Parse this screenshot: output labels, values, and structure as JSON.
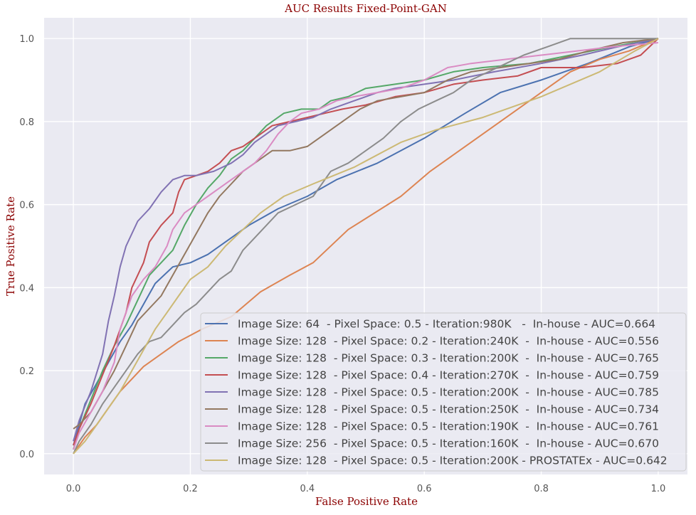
{
  "chart_data": {
    "type": "line",
    "title": "AUC Results Fixed-Point-GAN",
    "xlabel": "False Positive Rate",
    "ylabel": "True Positive Rate",
    "xlim": [
      -0.05,
      1.05
    ],
    "ylim": [
      -0.05,
      1.05
    ],
    "xticks": [
      0.0,
      0.2,
      0.4,
      0.6,
      0.8,
      1.0
    ],
    "yticks": [
      0.0,
      0.2,
      0.4,
      0.6,
      0.8,
      1.0
    ],
    "xtick_labels": [
      "0.0",
      "0.2",
      "0.4",
      "0.6",
      "0.8",
      "1.0"
    ],
    "ytick_labels": [
      "0.0",
      "0.2",
      "0.4",
      "0.6",
      "0.8",
      "1.0"
    ],
    "grid": true,
    "legend_position": "lower-right",
    "colors": {
      "title": "#8b0000",
      "axis_label": "#8b0000",
      "background": "#eaeaf2",
      "grid": "#ffffff",
      "tick_text": "#555555",
      "legend_text": "#444444",
      "legend_bg": "#eaeaf2",
      "legend_border": "#cccccc"
    },
    "series": [
      {
        "name": "Image Size: 64  - Pixel Space: 0.5 - Iteration:980K   -  In-house - AUC=0.664",
        "color": "#4c72b0",
        "points": [
          [
            0,
            0.02
          ],
          [
            0.01,
            0.07
          ],
          [
            0.02,
            0.12
          ],
          [
            0.04,
            0.17
          ],
          [
            0.06,
            0.22
          ],
          [
            0.08,
            0.27
          ],
          [
            0.1,
            0.31
          ],
          [
            0.12,
            0.36
          ],
          [
            0.14,
            0.41
          ],
          [
            0.17,
            0.45
          ],
          [
            0.2,
            0.46
          ],
          [
            0.23,
            0.48
          ],
          [
            0.27,
            0.52
          ],
          [
            0.3,
            0.55
          ],
          [
            0.35,
            0.59
          ],
          [
            0.4,
            0.62
          ],
          [
            0.45,
            0.66
          ],
          [
            0.52,
            0.7
          ],
          [
            0.6,
            0.76
          ],
          [
            0.67,
            0.82
          ],
          [
            0.73,
            0.87
          ],
          [
            0.8,
            0.9
          ],
          [
            0.88,
            0.94
          ],
          [
            0.95,
            0.98
          ],
          [
            1.0,
            1.0
          ]
        ]
      },
      {
        "name": "Image Size: 128  - Pixel Space: 0.2 - Iteration:240K  -  In-house - AUC=0.556",
        "color": "#dd8452",
        "points": [
          [
            0,
            0.0
          ],
          [
            0.01,
            0.02
          ],
          [
            0.02,
            0.04
          ],
          [
            0.04,
            0.07
          ],
          [
            0.06,
            0.11
          ],
          [
            0.08,
            0.15
          ],
          [
            0.1,
            0.18
          ],
          [
            0.12,
            0.21
          ],
          [
            0.15,
            0.24
          ],
          [
            0.18,
            0.27
          ],
          [
            0.22,
            0.3
          ],
          [
            0.27,
            0.33
          ],
          [
            0.32,
            0.39
          ],
          [
            0.37,
            0.43
          ],
          [
            0.41,
            0.46
          ],
          [
            0.47,
            0.54
          ],
          [
            0.56,
            0.62
          ],
          [
            0.61,
            0.68
          ],
          [
            0.67,
            0.74
          ],
          [
            0.73,
            0.8
          ],
          [
            0.8,
            0.87
          ],
          [
            0.85,
            0.92
          ],
          [
            0.9,
            0.95
          ],
          [
            0.95,
            0.97
          ],
          [
            1.0,
            1.0
          ]
        ]
      },
      {
        "name": "Image Size: 128  - Pixel Space: 0.3 - Iteration:200K  -  In-house - AUC=0.765",
        "color": "#55a868",
        "points": [
          [
            0,
            0.01
          ],
          [
            0.01,
            0.06
          ],
          [
            0.03,
            0.13
          ],
          [
            0.05,
            0.2
          ],
          [
            0.07,
            0.26
          ],
          [
            0.09,
            0.31
          ],
          [
            0.11,
            0.37
          ],
          [
            0.13,
            0.43
          ],
          [
            0.15,
            0.46
          ],
          [
            0.17,
            0.49
          ],
          [
            0.19,
            0.55
          ],
          [
            0.21,
            0.6
          ],
          [
            0.23,
            0.64
          ],
          [
            0.25,
            0.67
          ],
          [
            0.27,
            0.71
          ],
          [
            0.29,
            0.73
          ],
          [
            0.31,
            0.76
          ],
          [
            0.33,
            0.79
          ],
          [
            0.36,
            0.82
          ],
          [
            0.39,
            0.83
          ],
          [
            0.42,
            0.83
          ],
          [
            0.44,
            0.85
          ],
          [
            0.47,
            0.86
          ],
          [
            0.5,
            0.88
          ],
          [
            0.55,
            0.89
          ],
          [
            0.6,
            0.9
          ],
          [
            0.65,
            0.92
          ],
          [
            0.7,
            0.93
          ],
          [
            0.78,
            0.94
          ],
          [
            0.85,
            0.96
          ],
          [
            0.92,
            0.98
          ],
          [
            1.0,
            1.0
          ]
        ]
      },
      {
        "name": "Image Size: 128  - Pixel Space: 0.4 - Iteration:270K  -  In-house - AUC=0.759",
        "color": "#c44e52",
        "points": [
          [
            0,
            0.02
          ],
          [
            0.01,
            0.06
          ],
          [
            0.03,
            0.12
          ],
          [
            0.05,
            0.19
          ],
          [
            0.07,
            0.26
          ],
          [
            0.09,
            0.34
          ],
          [
            0.1,
            0.4
          ],
          [
            0.12,
            0.46
          ],
          [
            0.13,
            0.51
          ],
          [
            0.15,
            0.55
          ],
          [
            0.17,
            0.58
          ],
          [
            0.18,
            0.63
          ],
          [
            0.19,
            0.66
          ],
          [
            0.21,
            0.67
          ],
          [
            0.23,
            0.68
          ],
          [
            0.25,
            0.7
          ],
          [
            0.27,
            0.73
          ],
          [
            0.29,
            0.74
          ],
          [
            0.31,
            0.76
          ],
          [
            0.34,
            0.79
          ],
          [
            0.37,
            0.8
          ],
          [
            0.4,
            0.81
          ],
          [
            0.43,
            0.82
          ],
          [
            0.46,
            0.83
          ],
          [
            0.5,
            0.84
          ],
          [
            0.55,
            0.86
          ],
          [
            0.6,
            0.87
          ],
          [
            0.65,
            0.89
          ],
          [
            0.7,
            0.9
          ],
          [
            0.76,
            0.91
          ],
          [
            0.8,
            0.93
          ],
          [
            0.87,
            0.93
          ],
          [
            0.93,
            0.94
          ],
          [
            0.97,
            0.96
          ],
          [
            1.0,
            1.0
          ]
        ]
      },
      {
        "name": "Image Size: 128  - Pixel Space: 0.5 - Iteration:200K  -  In-house - AUC=0.785",
        "color": "#8172b3",
        "points": [
          [
            0,
            0.03
          ],
          [
            0.01,
            0.08
          ],
          [
            0.03,
            0.15
          ],
          [
            0.05,
            0.24
          ],
          [
            0.06,
            0.32
          ],
          [
            0.07,
            0.38
          ],
          [
            0.08,
            0.45
          ],
          [
            0.09,
            0.5
          ],
          [
            0.1,
            0.53
          ],
          [
            0.11,
            0.56
          ],
          [
            0.13,
            0.59
          ],
          [
            0.15,
            0.63
          ],
          [
            0.17,
            0.66
          ],
          [
            0.19,
            0.67
          ],
          [
            0.21,
            0.67
          ],
          [
            0.24,
            0.68
          ],
          [
            0.27,
            0.7
          ],
          [
            0.29,
            0.72
          ],
          [
            0.31,
            0.75
          ],
          [
            0.33,
            0.77
          ],
          [
            0.35,
            0.79
          ],
          [
            0.38,
            0.8
          ],
          [
            0.41,
            0.81
          ],
          [
            0.44,
            0.83
          ],
          [
            0.48,
            0.85
          ],
          [
            0.52,
            0.87
          ],
          [
            0.55,
            0.88
          ],
          [
            0.6,
            0.89
          ],
          [
            0.65,
            0.9
          ],
          [
            0.72,
            0.92
          ],
          [
            0.8,
            0.94
          ],
          [
            0.87,
            0.96
          ],
          [
            0.93,
            0.98
          ],
          [
            1.0,
            1.0
          ]
        ]
      },
      {
        "name": "Image Size: 128  - Pixel Space: 0.5 - Iteration:250K  -  In-house - AUC=0.734",
        "color": "#937860",
        "points": [
          [
            0,
            0.06
          ],
          [
            0.01,
            0.07
          ],
          [
            0.03,
            0.1
          ],
          [
            0.05,
            0.15
          ],
          [
            0.07,
            0.2
          ],
          [
            0.09,
            0.26
          ],
          [
            0.11,
            0.32
          ],
          [
            0.13,
            0.35
          ],
          [
            0.15,
            0.38
          ],
          [
            0.17,
            0.43
          ],
          [
            0.19,
            0.48
          ],
          [
            0.21,
            0.53
          ],
          [
            0.23,
            0.58
          ],
          [
            0.25,
            0.62
          ],
          [
            0.27,
            0.65
          ],
          [
            0.29,
            0.68
          ],
          [
            0.31,
            0.7
          ],
          [
            0.34,
            0.73
          ],
          [
            0.37,
            0.73
          ],
          [
            0.4,
            0.74
          ],
          [
            0.43,
            0.77
          ],
          [
            0.46,
            0.8
          ],
          [
            0.49,
            0.83
          ],
          [
            0.52,
            0.85
          ],
          [
            0.56,
            0.86
          ],
          [
            0.6,
            0.87
          ],
          [
            0.64,
            0.9
          ],
          [
            0.68,
            0.92
          ],
          [
            0.73,
            0.93
          ],
          [
            0.78,
            0.94
          ],
          [
            0.83,
            0.95
          ],
          [
            0.88,
            0.97
          ],
          [
            0.94,
            0.99
          ],
          [
            1.0,
            1.0
          ]
        ]
      },
      {
        "name": "Image Size: 128  - Pixel Space: 0.5 - Iteration:190K  -  In-house - AUC=0.761",
        "color": "#da8bc3",
        "points": [
          [
            0,
            0.01
          ],
          [
            0.01,
            0.05
          ],
          [
            0.03,
            0.1
          ],
          [
            0.05,
            0.15
          ],
          [
            0.07,
            0.22
          ],
          [
            0.08,
            0.3
          ],
          [
            0.1,
            0.38
          ],
          [
            0.12,
            0.42
          ],
          [
            0.14,
            0.45
          ],
          [
            0.16,
            0.5
          ],
          [
            0.17,
            0.54
          ],
          [
            0.19,
            0.58
          ],
          [
            0.21,
            0.6
          ],
          [
            0.23,
            0.62
          ],
          [
            0.25,
            0.64
          ],
          [
            0.27,
            0.66
          ],
          [
            0.29,
            0.68
          ],
          [
            0.31,
            0.7
          ],
          [
            0.33,
            0.73
          ],
          [
            0.35,
            0.77
          ],
          [
            0.37,
            0.8
          ],
          [
            0.39,
            0.82
          ],
          [
            0.42,
            0.83
          ],
          [
            0.45,
            0.85
          ],
          [
            0.48,
            0.86
          ],
          [
            0.52,
            0.87
          ],
          [
            0.56,
            0.88
          ],
          [
            0.6,
            0.9
          ],
          [
            0.64,
            0.93
          ],
          [
            0.68,
            0.94
          ],
          [
            0.74,
            0.95
          ],
          [
            0.8,
            0.96
          ],
          [
            0.86,
            0.97
          ],
          [
            0.92,
            0.98
          ],
          [
            1.0,
            0.99
          ]
        ]
      },
      {
        "name": "Image Size: 256  - Pixel Space: 0.5 - Iteration:160K  -  In-house - AUC=0.670",
        "color": "#8c8c8c",
        "points": [
          [
            0,
            0.0
          ],
          [
            0.01,
            0.03
          ],
          [
            0.03,
            0.07
          ],
          [
            0.05,
            0.12
          ],
          [
            0.07,
            0.16
          ],
          [
            0.09,
            0.2
          ],
          [
            0.11,
            0.24
          ],
          [
            0.13,
            0.27
          ],
          [
            0.15,
            0.28
          ],
          [
            0.17,
            0.31
          ],
          [
            0.19,
            0.34
          ],
          [
            0.21,
            0.36
          ],
          [
            0.23,
            0.39
          ],
          [
            0.25,
            0.42
          ],
          [
            0.27,
            0.44
          ],
          [
            0.29,
            0.49
          ],
          [
            0.31,
            0.52
          ],
          [
            0.33,
            0.55
          ],
          [
            0.35,
            0.58
          ],
          [
            0.38,
            0.6
          ],
          [
            0.41,
            0.62
          ],
          [
            0.44,
            0.68
          ],
          [
            0.47,
            0.7
          ],
          [
            0.5,
            0.73
          ],
          [
            0.53,
            0.76
          ],
          [
            0.56,
            0.8
          ],
          [
            0.59,
            0.83
          ],
          [
            0.62,
            0.85
          ],
          [
            0.65,
            0.87
          ],
          [
            0.68,
            0.9
          ],
          [
            0.71,
            0.92
          ],
          [
            0.74,
            0.94
          ],
          [
            0.77,
            0.96
          ],
          [
            0.81,
            0.98
          ],
          [
            0.85,
            1.0
          ],
          [
            0.9,
            1.0
          ],
          [
            1.0,
            1.0
          ]
        ]
      },
      {
        "name": "Image Size: 128  - Pixel Space: 0.5 - Iteration:200K - PROSTATEx - AUC=0.642",
        "color": "#ccb974",
        "points": [
          [
            0,
            0.0
          ],
          [
            0.02,
            0.03
          ],
          [
            0.04,
            0.07
          ],
          [
            0.06,
            0.11
          ],
          [
            0.08,
            0.15
          ],
          [
            0.1,
            0.2
          ],
          [
            0.12,
            0.25
          ],
          [
            0.14,
            0.3
          ],
          [
            0.16,
            0.34
          ],
          [
            0.18,
            0.38
          ],
          [
            0.2,
            0.42
          ],
          [
            0.23,
            0.45
          ],
          [
            0.26,
            0.5
          ],
          [
            0.29,
            0.54
          ],
          [
            0.32,
            0.58
          ],
          [
            0.36,
            0.62
          ],
          [
            0.41,
            0.65
          ],
          [
            0.48,
            0.69
          ],
          [
            0.56,
            0.75
          ],
          [
            0.62,
            0.78
          ],
          [
            0.7,
            0.81
          ],
          [
            0.8,
            0.86
          ],
          [
            0.9,
            0.92
          ],
          [
            0.96,
            0.97
          ],
          [
            1.0,
            1.0
          ]
        ]
      }
    ]
  }
}
